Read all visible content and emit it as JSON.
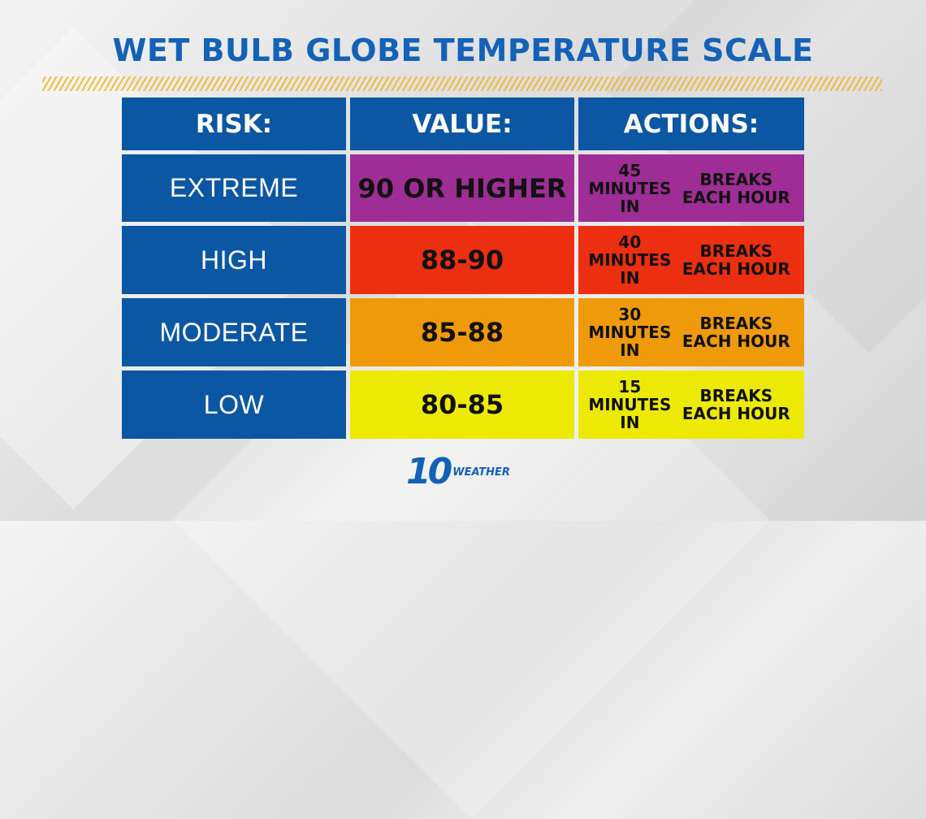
{
  "title": "WET BULB GLOBE TEMPERATURE SCALE",
  "headers": [
    "RISK:",
    "VALUE:",
    "ACTIONS:"
  ],
  "rows": [
    {
      "risk": "EXTREME",
      "value": "90 OR HIGHER",
      "action_line1": "45 MINUTES IN",
      "action_line2": "BREAKS EACH HOUR",
      "color": "#9e2d95"
    },
    {
      "risk": "HIGH",
      "value": "88-90",
      "action_line1": "40 MINUTES IN",
      "action_line2": "BREAKS EACH HOUR",
      "color": "#ec2f10"
    },
    {
      "risk": "MODERATE",
      "value": "85-88",
      "action_line1": "30 MINUTES IN",
      "action_line2": "BREAKS EACH HOUR",
      "color": "#ee9a0b"
    },
    {
      "risk": "LOW",
      "value": "80-85",
      "action_line1": "15 MINUTES IN",
      "action_line2": "BREAKS EACH HOUR",
      "color": "#ecea05"
    }
  ],
  "logo": {
    "number": "10",
    "text": "WEATHER"
  }
}
